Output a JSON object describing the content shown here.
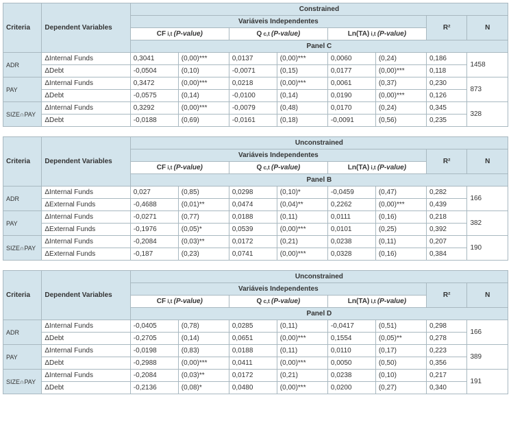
{
  "headers": {
    "vars": "Variáveis Independentes",
    "r2": "R²",
    "n": "N",
    "cf": "CF",
    "cf_sub": "i,t",
    "pval": "(P-value)",
    "q": "Q",
    "q_sub": "c,t",
    "lnta": "Ln(TA)",
    "lnta_sub": "i,t",
    "criteria": "Criteria",
    "depvars": "Dependent Variables"
  },
  "tables": [
    {
      "constraint": "Constrained",
      "panel": "Panel C",
      "groups": [
        {
          "criteria": "ADR",
          "n": "1458",
          "rows": [
            {
              "dep": "ΔInternal Funds",
              "cf": "0,3041",
              "cfp": "(0,00)***",
              "q": "0,0137",
              "qp": "(0,00)***",
              "ln": "0,0060",
              "lnp": "(0,24)",
              "r2": "0,186"
            },
            {
              "dep": "ΔDebt",
              "cf": "-0,0504",
              "cfp": "(0,10)",
              "q": "-0,0071",
              "qp": "(0,15)",
              "ln": "0,0177",
              "lnp": "(0,00)***",
              "r2": "0,118"
            }
          ]
        },
        {
          "criteria": "PAY",
          "n": "873",
          "rows": [
            {
              "dep": "ΔInternal Funds",
              "cf": "0,3472",
              "cfp": "(0,00)***",
              "q": "0,0218",
              "qp": "(0,00)***",
              "ln": "0,0061",
              "lnp": "(0,37)",
              "r2": "0,230"
            },
            {
              "dep": "ΔDebt",
              "cf": "-0,0575",
              "cfp": "(0,14)",
              "q": "-0,0100",
              "qp": "(0,14)",
              "ln": "0,0190",
              "lnp": "(0,00)***",
              "r2": "0,126"
            }
          ]
        },
        {
          "criteria": "SIZE∩PAY",
          "n": "328",
          "rows": [
            {
              "dep": "ΔInternal Funds",
              "cf": "0,3292",
              "cfp": "(0,00)***",
              "q": "-0,0079",
              "qp": "(0,48)",
              "ln": "0,0170",
              "lnp": "(0,24)",
              "r2": "0,345"
            },
            {
              "dep": "ΔDebt",
              "cf": "-0,0188",
              "cfp": "(0,69)",
              "q": "-0,0161",
              "qp": "(0,18)",
              "ln": "-0,0091",
              "lnp": "(0,56)",
              "r2": "0,235"
            }
          ]
        }
      ]
    },
    {
      "constraint": "Unconstrained",
      "panel": "Panel B",
      "groups": [
        {
          "criteria": "ADR",
          "n": "166",
          "rows": [
            {
              "dep": "ΔInternal Funds",
              "cf": "0,027",
              "cfp": "(0,85)",
              "q": "0,0298",
              "qp": "(0,10)*",
              "ln": "-0,0459",
              "lnp": "(0,47)",
              "r2": "0,282"
            },
            {
              "dep": "ΔExternal Funds",
              "cf": "-0,4688",
              "cfp": "(0,01)**",
              "q": "0,0474",
              "qp": "(0,04)**",
              "ln": "0,2262",
              "lnp": "(0,00)***",
              "r2": "0,439"
            }
          ]
        },
        {
          "criteria": "PAY",
          "n": "382",
          "rows": [
            {
              "dep": "ΔInternal Funds",
              "cf": "-0,0271",
              "cfp": "(0,77)",
              "q": "0,0188",
              "qp": "(0,11)",
              "ln": "0,0111",
              "lnp": "(0,16)",
              "r2": "0,218"
            },
            {
              "dep": "ΔExternal Funds",
              "cf": "-0,1976",
              "cfp": "(0,05)*",
              "q": "0,0539",
              "qp": "(0,00)***",
              "ln": "0,0101",
              "lnp": "(0,25)",
              "r2": "0,392"
            }
          ]
        },
        {
          "criteria": "SIZE∩PAY",
          "n": "190",
          "rows": [
            {
              "dep": "ΔInternal Funds",
              "cf": "-0,2084",
              "cfp": "(0,03)**",
              "q": "0,0172",
              "qp": "(0,21)",
              "ln": "0,0238",
              "lnp": "(0,11)",
              "r2": "0,207"
            },
            {
              "dep": "ΔExternal Funds",
              "cf": "-0,187",
              "cfp": "(0,23)",
              "q": "0,0741",
              "qp": "(0,00)***",
              "ln": "0,0328",
              "lnp": "(0,16)",
              "r2": "0,384"
            }
          ]
        }
      ]
    },
    {
      "constraint": "Unconstrained",
      "panel": "Panel D",
      "groups": [
        {
          "criteria": "ADR",
          "n": "166",
          "rows": [
            {
              "dep": "ΔInternal Funds",
              "cf": "-0,0405",
              "cfp": "(0,78)",
              "q": "0,0285",
              "qp": "(0,11)",
              "ln": "-0,0417",
              "lnp": "(0,51)",
              "r2": "0,298"
            },
            {
              "dep": "ΔDebt",
              "cf": "-0,2705",
              "cfp": "(0,14)",
              "q": "0,0651",
              "qp": "(0,00)***",
              "ln": "0,1554",
              "lnp": "(0,05)**",
              "r2": "0,278"
            }
          ]
        },
        {
          "criteria": "PAY",
          "n": "389",
          "rows": [
            {
              "dep": "ΔInternal Funds",
              "cf": "-0,0198",
              "cfp": "(0,83)",
              "q": "0,0188",
              "qp": "(0,11)",
              "ln": "0,0110",
              "lnp": "(0,17)",
              "r2": "0,223"
            },
            {
              "dep": "ΔDebt",
              "cf": "-0,2988",
              "cfp": "(0,00)***",
              "q": "0,0411",
              "qp": "(0,00)***",
              "ln": "0,0050",
              "lnp": "(0,50)",
              "r2": "0,356"
            }
          ]
        },
        {
          "criteria": "SIZE∩PAY",
          "n": "191",
          "rows": [
            {
              "dep": "ΔInternal Funds",
              "cf": "-0,2084",
              "cfp": "(0,03)**",
              "q": "0,0172",
              "qp": "(0,21)",
              "ln": "0,0238",
              "lnp": "(0,10)",
              "r2": "0,217"
            },
            {
              "dep": "ΔDebt",
              "cf": "-0,2136",
              "cfp": "(0,08)*",
              "q": "0,0480",
              "qp": "(0,00)***",
              "ln": "0,0200",
              "lnp": "(0,27)",
              "r2": "0,340"
            }
          ]
        }
      ]
    }
  ]
}
